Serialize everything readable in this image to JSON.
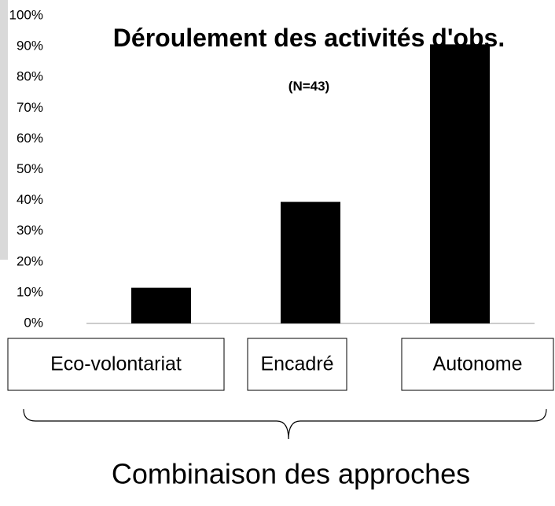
{
  "chart_data": {
    "type": "bar",
    "title": "Déroulement des activités d'obs.",
    "subtitle": "(N=43)",
    "categories": [
      "Eco-volontariat",
      "Encadré",
      "Autonome"
    ],
    "values": [
      11.6,
      39.5,
      90.7
    ],
    "color": "#000000",
    "ylim": [
      0,
      100
    ],
    "yticks": [
      {
        "value": 0,
        "label": "0%"
      },
      {
        "value": 10,
        "label": "10%"
      },
      {
        "value": 20,
        "label": "20%"
      },
      {
        "value": 30,
        "label": "30%"
      },
      {
        "value": 40,
        "label": "40%"
      },
      {
        "value": 50,
        "label": "50%"
      },
      {
        "value": 60,
        "label": "60%"
      },
      {
        "value": 70,
        "label": "70%"
      },
      {
        "value": 80,
        "label": "80%"
      },
      {
        "value": 90,
        "label": "90%"
      },
      {
        "value": 100,
        "label": "100%"
      }
    ],
    "grid": false,
    "annotation": "Combinaison des approches"
  }
}
